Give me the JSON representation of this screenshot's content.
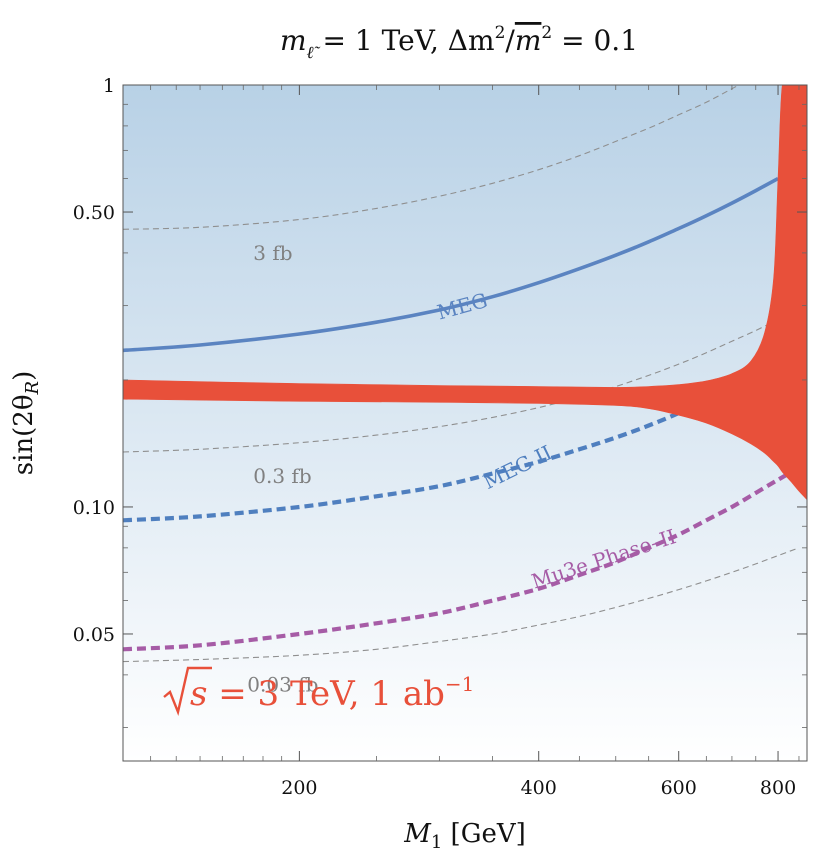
{
  "chart_data": {
    "type": "line",
    "title": "m_ℓ̃ = 1 TeV,  Δm²/m² = 0.1",
    "title_parts": {
      "m": "m",
      "sub": "ℓ̃",
      "eq1": " = 1 TeV,  Δm",
      "sup1": "2",
      "slash": "/",
      "m2": "m",
      "sup2": "2",
      "eq2": " = 0.1"
    },
    "xlabel": {
      "sym": "M",
      "sub": "1",
      "unit": " [GeV]"
    },
    "ylabel": {
      "fn": "sin(2θ",
      "sub": "R",
      "close": ")"
    },
    "xscale": "log",
    "yscale": "log",
    "xlim": [
      120,
      870
    ],
    "ylim": [
      0.025,
      1
    ],
    "x_ticks": [
      {
        "value": 200,
        "label": "200"
      },
      {
        "value": 400,
        "label": "400"
      },
      {
        "value": 600,
        "label": "600"
      },
      {
        "value": 800,
        "label": "800"
      }
    ],
    "y_ticks": [
      {
        "value": 0.05,
        "label": "0.05"
      },
      {
        "value": 0.1,
        "label": "0.10"
      },
      {
        "value": 0.5,
        "label": "0.50"
      },
      {
        "value": 1,
        "label": "1"
      }
    ],
    "background_gradient": {
      "top": "#b8d1e6",
      "bottom": "#ffffff"
    },
    "series": [
      {
        "name": "MEG",
        "style": "solid",
        "color": "#5b84c1",
        "x": [
          120,
          150,
          200,
          250,
          300,
          350,
          400,
          450,
          500,
          550,
          600,
          650,
          700,
          750,
          800
        ],
        "y": [
          0.235,
          0.242,
          0.257,
          0.274,
          0.293,
          0.315,
          0.34,
          0.367,
          0.395,
          0.425,
          0.457,
          0.49,
          0.525,
          0.562,
          0.6
        ],
        "label": "MEG",
        "label_at": {
          "x": 300,
          "y": 0.278,
          "rotate": -15
        }
      },
      {
        "name": "MEG II",
        "style": "dashed",
        "color": "#4f7fbf",
        "x": [
          120,
          150,
          200,
          250,
          300,
          350,
          400,
          450,
          500,
          550,
          600,
          650
        ],
        "y": [
          0.093,
          0.095,
          0.1,
          0.106,
          0.112,
          0.12,
          0.128,
          0.137,
          0.146,
          0.156,
          0.167,
          0.18
        ],
        "label": "MEG II",
        "label_at": {
          "x": 345,
          "y": 0.11,
          "rotate": -26
        }
      },
      {
        "name": "Mu3e Phase-II",
        "style": "dashed",
        "color": "#a65ca6",
        "x": [
          120,
          150,
          200,
          250,
          300,
          350,
          400,
          450,
          500,
          550,
          600,
          650,
          700,
          750,
          800,
          850
        ],
        "y": [
          0.046,
          0.047,
          0.05,
          0.053,
          0.056,
          0.06,
          0.064,
          0.069,
          0.074,
          0.08,
          0.086,
          0.093,
          0.1,
          0.108,
          0.116,
          0.124
        ],
        "label": "Mu3e Phase–II",
        "label_at": {
          "x": 395,
          "y": 0.064,
          "rotate": -18
        }
      },
      {
        "name": "3 fb",
        "style": "thin-dashed",
        "color": "#8f8f8f",
        "x": [
          120,
          150,
          200,
          250,
          300,
          350,
          400,
          450,
          500,
          550,
          600,
          650,
          700,
          750,
          800,
          850
        ],
        "y": [
          0.455,
          0.46,
          0.48,
          0.51,
          0.545,
          0.585,
          0.63,
          0.68,
          0.735,
          0.79,
          0.85,
          0.91,
          0.98,
          1.05,
          1.12,
          1.2
        ],
        "label": "3 fb",
        "label_at": {
          "x": 175,
          "y": 0.385,
          "rotate": 0
        }
      },
      {
        "name": "0.3 fb",
        "style": "thin-dashed",
        "color": "#8f8f8f",
        "x": [
          120,
          150,
          200,
          250,
          300,
          350,
          400,
          450,
          500,
          550,
          600,
          650,
          700,
          750,
          800,
          850
        ],
        "y": [
          0.135,
          0.137,
          0.142,
          0.148,
          0.155,
          0.163,
          0.172,
          0.182,
          0.193,
          0.205,
          0.218,
          0.232,
          0.247,
          0.262,
          0.278,
          0.295
        ],
        "label": "0.3 fb",
        "label_at": {
          "x": 175,
          "y": 0.114,
          "rotate": 0
        }
      },
      {
        "name": "0.03 fb",
        "style": "thin-dashed",
        "color": "#8f8f8f",
        "x": [
          120,
          150,
          200,
          250,
          300,
          350,
          400,
          450,
          500,
          550,
          600,
          650,
          700,
          750,
          800,
          850
        ],
        "y": [
          0.043,
          0.0435,
          0.0445,
          0.046,
          0.048,
          0.05,
          0.0525,
          0.055,
          0.0578,
          0.0607,
          0.0637,
          0.0668,
          0.07,
          0.0733,
          0.0767,
          0.08
        ],
        "label": "0.03 fb",
        "label_at": {
          "x": 172,
          "y": 0.0365,
          "rotate": 0
        }
      }
    ],
    "band": {
      "color": "#e8503a",
      "x": [
        120,
        200,
        300,
        400,
        500,
        550,
        600,
        650,
        700,
        740,
        770,
        790,
        800,
        810,
        830,
        850,
        870
      ],
      "y_upper": [
        0.2,
        0.196,
        0.194,
        0.193,
        0.192,
        0.193,
        0.195,
        0.199,
        0.207,
        0.222,
        0.26,
        0.35,
        0.6,
        1.0,
        1.0,
        1.0,
        1.0
      ],
      "y_lower": [
        0.18,
        0.178,
        0.177,
        0.176,
        0.174,
        0.171,
        0.165,
        0.158,
        0.149,
        0.141,
        0.134,
        0.128,
        0.125,
        0.121,
        0.115,
        0.109,
        0.104
      ]
    },
    "info_label": {
      "sqrt_arg": "s",
      "rest": " = 3 TeV, 1 ab",
      "sup": "−1"
    }
  }
}
